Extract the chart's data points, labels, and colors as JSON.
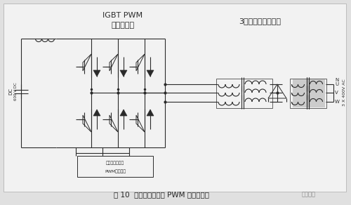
{
  "title": "图 10  加信号隔离后的 PWM 逆变原理图",
  "label_igbt_pwm": "IGBT PWM",
  "label_direct": "直接变换器",
  "label_transformer": "3相过滤隔离变压器",
  "label_control": "加控制信号隔离",
  "label_pwm": "PWM调制电路",
  "label_dc": "DC",
  "label_dc2": "600 V DC",
  "label_right": "3 X 400V AC",
  "label_n": "N",
  "label_u": "U",
  "label_v": "V",
  "label_w": "W",
  "label_watermark": "电源联盟",
  "bg_color": "#e0e0e0",
  "panel_color": "#f2f2f2",
  "line_color": "#2a2a2a",
  "figsize": [
    5.0,
    2.92
  ],
  "dpi": 100
}
